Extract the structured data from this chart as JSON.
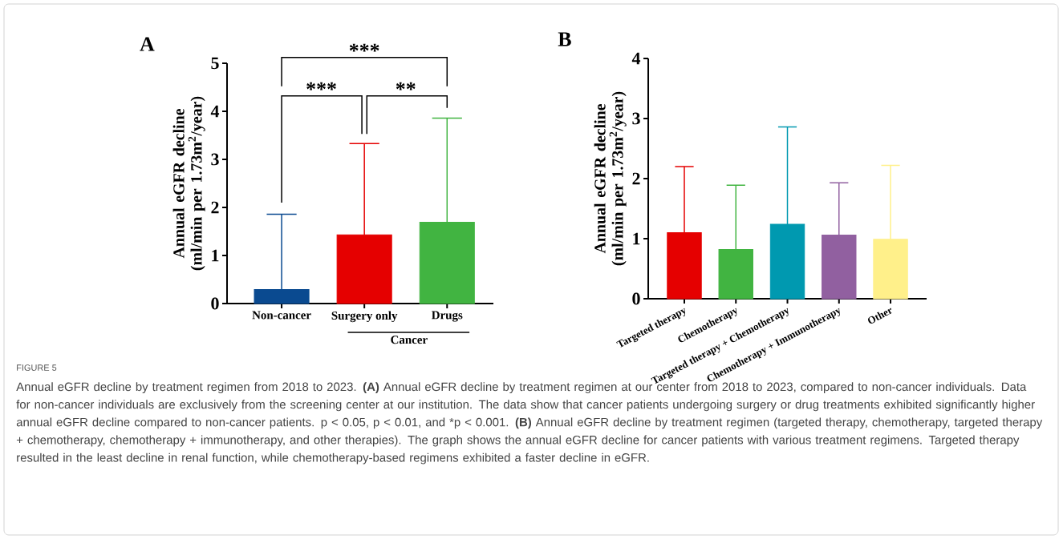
{
  "chart_data": [
    {
      "type": "bar",
      "title": "A",
      "ylabel": "Annual eGFR decline (ml/min per 1.73m$^{2}$/year)",
      "categories": [
        "Non-cancer",
        "Surgery only",
        "Drugs"
      ],
      "values": [
        0.29,
        1.43,
        1.69
      ],
      "errors": [
        [
          0.29,
          1.86
        ],
        [
          1.43,
          3.33
        ],
        [
          1.69,
          3.86
        ]
      ],
      "colors": [
        "#0a4a90",
        "#e50000",
        "#41b441"
      ],
      "ylim": [
        0,
        5
      ],
      "yticks": [
        0,
        1,
        2,
        3,
        4,
        5
      ],
      "grid": false,
      "annotations": [
        "***",
        "***",
        "**",
        "Cancer",
        "FIGURE 5",
        "Annual eGFR decline by treatment regimen from 2018 to 2023. **(A)** Annual eGFR decline by treatment regimen at our center from 2018 to 2023, compared to non-cancer individuals. Data for non-cancer individuals are exclusively from the screening center at our institution. The data show that cancer patients undergoing surgery or drug treatments exhibited significantly higher annual eGFR decline compared to non-cancer patients. p < 0.05, p < 0.01, and *p < 0.001. **(B)** Annual eGFR decline by treatment regimen (targeted therapy, chemotherapy, targeted therapy + chemotherapy, chemotherapy + immunotherapy, and other therapies). The graph shows the annual eGFR decline for cancer patients with various treatment regimens. Targeted therapy resulted in the least decline in renal function, while chemotherapy-based regimens exhibited a faster decline in eGFR."
      ]
    },
    {
      "type": "bar",
      "title": "B",
      "ylabel": "Annual eGFR decline (ml/min per 1.73m$^{2}$/year)",
      "categories": [
        "Targeted therapy",
        "Chemotherapy",
        "Targeted therapy + Chemotherapy",
        "Chemotherapy + Immunotherapy",
        "Other"
      ],
      "values": [
        1.1,
        0.82,
        1.24,
        1.06,
        0.99
      ],
      "errors": [
        [
          1.1,
          2.2
        ],
        [
          0.82,
          1.89
        ],
        [
          1.24,
          2.86
        ],
        [
          1.06,
          1.93
        ],
        [
          0.99,
          2.22
        ]
      ],
      "colors": [
        "#e50000",
        "#41b441",
        "#0099b0",
        "#9160a0",
        "#fff08a"
      ],
      "ylim": [
        0,
        4
      ],
      "yticks": [
        0,
        1,
        2,
        3,
        4
      ],
      "grid": false
    }
  ]
}
